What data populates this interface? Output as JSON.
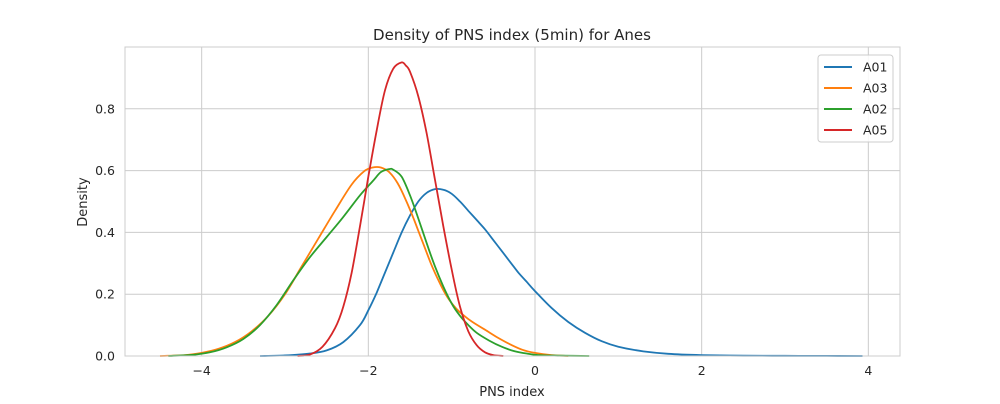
{
  "chart_data": {
    "type": "line",
    "title": "Density of PNS index (5min) for Anes",
    "xlabel": "PNS index",
    "ylabel": "Density",
    "xlim": [
      -4.92,
      4.38
    ],
    "ylim": [
      0.0,
      1.0
    ],
    "xticks": [
      -4,
      -2,
      0,
      2,
      4
    ],
    "xtick_labels": [
      "−4",
      "−2",
      "0",
      "2",
      "4"
    ],
    "yticks": [
      0.0,
      0.2,
      0.4,
      0.6,
      0.8
    ],
    "ytick_labels": [
      "0.0",
      "0.2",
      "0.4",
      "0.6",
      "0.8"
    ],
    "grid": true,
    "legend_position": "top-right",
    "series": [
      {
        "name": "A01",
        "color": "#1f77b4",
        "x": [
          -3.3,
          -3.0,
          -2.7,
          -2.5,
          -2.3,
          -2.1,
          -2.0,
          -1.9,
          -1.8,
          -1.7,
          -1.6,
          -1.5,
          -1.4,
          -1.3,
          -1.2,
          -1.1,
          -1.0,
          -0.9,
          -0.8,
          -0.7,
          -0.6,
          -0.5,
          -0.4,
          -0.3,
          -0.2,
          -0.1,
          0.0,
          0.2,
          0.4,
          0.6,
          0.8,
          1.0,
          1.3,
          1.6,
          2.0,
          2.5,
          3.0,
          3.5,
          3.93
        ],
        "y": [
          0.0,
          0.002,
          0.008,
          0.018,
          0.045,
          0.1,
          0.148,
          0.205,
          0.27,
          0.335,
          0.4,
          0.455,
          0.5,
          0.528,
          0.54,
          0.538,
          0.525,
          0.5,
          0.47,
          0.44,
          0.41,
          0.375,
          0.34,
          0.305,
          0.27,
          0.24,
          0.21,
          0.155,
          0.11,
          0.075,
          0.048,
          0.03,
          0.015,
          0.007,
          0.003,
          0.001,
          0.0005,
          0.0002,
          0.0
        ]
      },
      {
        "name": "A03",
        "color": "#ff7f0e",
        "x": [
          -4.5,
          -4.2,
          -4.0,
          -3.8,
          -3.6,
          -3.4,
          -3.2,
          -3.0,
          -2.8,
          -2.6,
          -2.4,
          -2.2,
          -2.05,
          -1.95,
          -1.85,
          -1.75,
          -1.65,
          -1.55,
          -1.45,
          -1.35,
          -1.25,
          -1.15,
          -1.05,
          -0.95,
          -0.85,
          -0.75,
          -0.6,
          -0.45,
          -0.3,
          -0.15,
          0.0,
          0.2,
          0.4
        ],
        "y": [
          0.0,
          0.003,
          0.01,
          0.023,
          0.045,
          0.08,
          0.13,
          0.2,
          0.29,
          0.38,
          0.47,
          0.555,
          0.598,
          0.61,
          0.61,
          0.595,
          0.56,
          0.505,
          0.44,
          0.37,
          0.3,
          0.24,
          0.19,
          0.155,
          0.13,
          0.11,
          0.085,
          0.06,
          0.038,
          0.02,
          0.01,
          0.003,
          0.0
        ]
      },
      {
        "name": "A02",
        "color": "#2ca02c",
        "x": [
          -4.4,
          -4.1,
          -3.9,
          -3.7,
          -3.5,
          -3.3,
          -3.1,
          -2.9,
          -2.7,
          -2.5,
          -2.3,
          -2.1,
          -1.95,
          -1.85,
          -1.75,
          -1.7,
          -1.6,
          -1.5,
          -1.4,
          -1.3,
          -1.2,
          -1.1,
          -1.0,
          -0.9,
          -0.8,
          -0.7,
          -0.55,
          -0.4,
          -0.25,
          -0.1,
          0.05,
          0.3,
          0.65
        ],
        "y": [
          0.0,
          0.004,
          0.012,
          0.028,
          0.055,
          0.1,
          0.165,
          0.245,
          0.32,
          0.385,
          0.45,
          0.52,
          0.565,
          0.595,
          0.605,
          0.603,
          0.58,
          0.52,
          0.445,
          0.365,
          0.29,
          0.225,
          0.17,
          0.13,
          0.1,
          0.075,
          0.05,
          0.03,
          0.016,
          0.008,
          0.003,
          0.001,
          0.0
        ]
      },
      {
        "name": "A05",
        "color": "#d62728",
        "x": [
          -2.85,
          -2.7,
          -2.55,
          -2.4,
          -2.3,
          -2.2,
          -2.1,
          -2.0,
          -1.9,
          -1.8,
          -1.7,
          -1.6,
          -1.55,
          -1.5,
          -1.4,
          -1.3,
          -1.2,
          -1.1,
          -1.0,
          -0.9,
          -0.8,
          -0.7,
          -0.6,
          -0.5,
          -0.38
        ],
        "y": [
          0.0,
          0.005,
          0.03,
          0.09,
          0.16,
          0.27,
          0.42,
          0.58,
          0.73,
          0.86,
          0.93,
          0.95,
          0.94,
          0.92,
          0.84,
          0.72,
          0.57,
          0.42,
          0.28,
          0.16,
          0.08,
          0.035,
          0.012,
          0.003,
          0.0
        ]
      }
    ]
  }
}
